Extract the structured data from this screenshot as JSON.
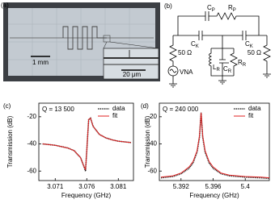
{
  "photo": {
    "label": "(a)",
    "scale_bar": "1 mm",
    "inset_scale_bar": "20 μm"
  },
  "circuit": {
    "label": "(b)",
    "components": [
      {
        "main": "C",
        "sub": "P"
      },
      {
        "main": "R",
        "sub": "P"
      },
      {
        "main": "C",
        "sub": "K"
      },
      {
        "main": "C",
        "sub": "K"
      },
      {
        "main": "50 Ω"
      },
      {
        "main": "50 Ω"
      },
      {
        "main": "VNA"
      },
      {
        "main": "L",
        "sub": "R"
      },
      {
        "main": "C",
        "sub": "R"
      },
      {
        "main": "R",
        "sub": "R"
      }
    ]
  },
  "chart_data": [
    {
      "type": "line",
      "panel_label": "(c)",
      "annotation": "Q = 13 500",
      "x_label": "Frequency (GHz)",
      "y_label": "Transmission (dB)",
      "x": [
        3.069,
        3.07,
        3.071,
        3.072,
        3.073,
        3.074,
        3.075,
        3.0755,
        3.0758,
        3.076,
        3.0763,
        3.0766,
        3.077,
        3.078,
        3.079,
        3.08,
        3.081,
        3.082,
        3.083
      ],
      "series": [
        {
          "name": "data",
          "color": "#000000",
          "line_style": "dotted",
          "values": [
            -40,
            -40.5,
            -41,
            -42,
            -43,
            -45,
            -50,
            -56,
            -60,
            -45,
            -22,
            -21,
            -27,
            -33,
            -35.5,
            -37,
            -38,
            -38.5,
            -39
          ]
        },
        {
          "name": "fit",
          "color": "#e02020",
          "line_style": "solid",
          "values": [
            -40,
            -40.5,
            -41,
            -42,
            -43,
            -45,
            -50,
            -56,
            -59,
            -45,
            -22,
            -21,
            -27,
            -33,
            -35.5,
            -37,
            -38,
            -38.5,
            -39
          ]
        }
      ],
      "xlim": [
        3.0684,
        3.0834
      ],
      "ylim": [
        -67,
        -10
      ],
      "xticks": [
        3.071,
        3.076,
        3.081
      ],
      "yticks": [
        -60,
        -40,
        -20
      ],
      "legend": "upper-right"
    },
    {
      "type": "line",
      "panel_label": "(d)",
      "annotation": "Q = 240 000",
      "x_label": "Frequency (GHz)",
      "y_label": "Transmission (dB)",
      "x": [
        5.3895,
        5.391,
        5.392,
        5.393,
        5.3935,
        5.394,
        5.3943,
        5.3945,
        5.3947,
        5.395,
        5.3955,
        5.396,
        5.397,
        5.398,
        5.4,
        5.402,
        5.403
      ],
      "series": [
        {
          "name": "data",
          "color": "#000000",
          "line_style": "dotted",
          "values": [
            -65,
            -64,
            -62,
            -58,
            -54,
            -46,
            -35,
            -17,
            -35,
            -46,
            -54,
            -58,
            -62,
            -63.5,
            -64.5,
            -65,
            -65.5
          ]
        },
        {
          "name": "fit",
          "color": "#e02020",
          "line_style": "solid",
          "values": [
            -64.5,
            -63.5,
            -61.5,
            -57,
            -53,
            -45,
            -34,
            -17,
            -34,
            -45,
            -53,
            -57,
            -61.5,
            -63,
            -64,
            -64.5,
            -65
          ]
        }
      ],
      "xlim": [
        5.3893,
        5.403
      ],
      "ylim": [
        -67,
        -10
      ],
      "xticks": [
        5.392,
        5.396,
        5.4
      ],
      "yticks": [
        -60,
        -40,
        -20
      ],
      "legend": "upper-right"
    }
  ]
}
